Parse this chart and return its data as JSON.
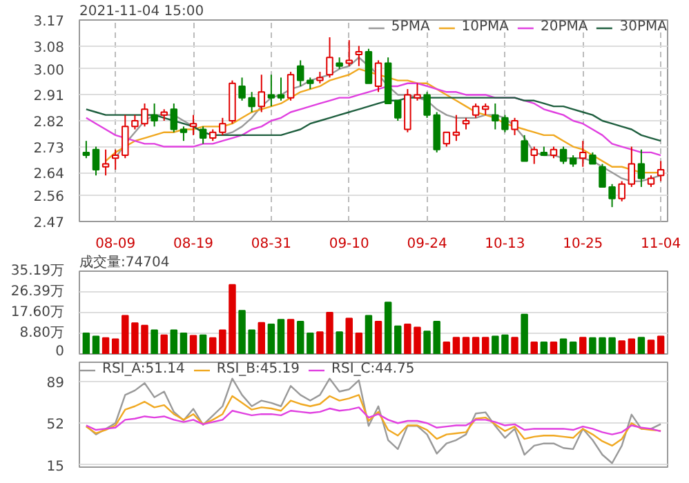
{
  "chart_data": [
    {
      "type": "candlestick",
      "title": "2021-11-04 15:00",
      "categories": [
        null,
        null,
        null,
        "08-09",
        null,
        null,
        null,
        null,
        null,
        null,
        null,
        "08-19",
        null,
        null,
        null,
        null,
        null,
        null,
        null,
        "08-31",
        null,
        null,
        null,
        null,
        null,
        null,
        null,
        "09-10",
        null,
        null,
        null,
        null,
        null,
        null,
        null,
        "09-24",
        null,
        null,
        null,
        null,
        null,
        null,
        null,
        "10-13",
        null,
        null,
        null,
        null,
        null,
        null,
        null,
        "10-25",
        null,
        null,
        null,
        null,
        null,
        null,
        null,
        "11-04"
      ],
      "ohlc": [
        [
          2.71,
          2.75,
          2.69,
          2.7
        ],
        [
          2.72,
          2.73,
          2.63,
          2.65
        ],
        [
          2.66,
          2.72,
          2.63,
          2.67
        ],
        [
          2.69,
          2.72,
          2.65,
          2.7
        ],
        [
          2.7,
          2.84,
          2.69,
          2.8
        ],
        [
          2.8,
          2.84,
          2.79,
          2.82
        ],
        [
          2.81,
          2.88,
          2.8,
          2.86
        ],
        [
          2.84,
          2.88,
          2.8,
          2.82
        ],
        [
          2.84,
          2.86,
          2.82,
          2.85
        ],
        [
          2.86,
          2.88,
          2.78,
          2.79
        ],
        [
          2.79,
          2.8,
          2.75,
          2.78
        ],
        [
          2.8,
          2.84,
          2.77,
          2.81
        ],
        [
          2.79,
          2.8,
          2.74,
          2.76
        ],
        [
          2.76,
          2.79,
          2.75,
          2.78
        ],
        [
          2.78,
          2.83,
          2.77,
          2.81
        ],
        [
          2.82,
          2.96,
          2.81,
          2.95
        ],
        [
          2.94,
          2.97,
          2.89,
          2.9
        ],
        [
          2.9,
          2.92,
          2.85,
          2.87
        ],
        [
          2.87,
          2.98,
          2.85,
          2.92
        ],
        [
          2.91,
          2.98,
          2.87,
          2.9
        ],
        [
          2.91,
          2.97,
          2.89,
          2.9
        ],
        [
          2.9,
          2.99,
          2.89,
          2.98
        ],
        [
          3.01,
          3.03,
          2.94,
          2.96
        ],
        [
          2.96,
          2.97,
          2.93,
          2.95
        ],
        [
          2.96,
          2.99,
          2.95,
          2.97
        ],
        [
          2.98,
          3.11,
          2.97,
          3.04
        ],
        [
          3.02,
          3.04,
          3.0,
          3.01
        ],
        [
          3.02,
          3.1,
          3.01,
          3.03
        ],
        [
          3.05,
          3.08,
          3.01,
          3.06
        ],
        [
          3.06,
          3.07,
          2.95,
          2.95
        ],
        [
          2.94,
          3.03,
          2.92,
          3.02
        ],
        [
          3.02,
          3.04,
          2.88,
          2.88
        ],
        [
          2.89,
          2.89,
          2.82,
          2.83
        ],
        [
          2.79,
          2.93,
          2.78,
          2.91
        ],
        [
          2.9,
          2.95,
          2.89,
          2.91
        ],
        [
          2.91,
          2.92,
          2.83,
          2.84
        ],
        [
          2.84,
          2.85,
          2.71,
          2.72
        ],
        [
          2.74,
          2.78,
          2.73,
          2.78
        ],
        [
          2.77,
          2.84,
          2.75,
          2.78
        ],
        [
          2.81,
          2.83,
          2.79,
          2.82
        ],
        [
          2.84,
          2.88,
          2.83,
          2.87
        ],
        [
          2.86,
          2.88,
          2.84,
          2.87
        ],
        [
          2.84,
          2.88,
          2.79,
          2.82
        ],
        [
          2.83,
          2.84,
          2.78,
          2.79
        ],
        [
          2.79,
          2.83,
          2.77,
          2.82
        ],
        [
          2.75,
          2.77,
          2.68,
          2.68
        ],
        [
          2.7,
          2.73,
          2.67,
          2.72
        ],
        [
          2.71,
          2.73,
          2.7,
          2.7
        ],
        [
          2.7,
          2.73,
          2.69,
          2.72
        ],
        [
          2.72,
          2.73,
          2.67,
          2.68
        ],
        [
          2.69,
          2.7,
          2.66,
          2.67
        ],
        [
          2.69,
          2.75,
          2.66,
          2.71
        ],
        [
          2.7,
          2.71,
          2.67,
          2.67
        ],
        [
          2.66,
          2.67,
          2.59,
          2.59
        ],
        [
          2.59,
          2.6,
          2.52,
          2.55
        ],
        [
          2.55,
          2.61,
          2.54,
          2.6
        ],
        [
          2.6,
          2.73,
          2.59,
          2.67
        ],
        [
          2.67,
          2.72,
          2.59,
          2.62
        ],
        [
          2.6,
          2.63,
          2.59,
          2.62
        ],
        [
          2.63,
          2.68,
          2.61,
          2.65
        ]
      ],
      "colors": [
        "#008000",
        "#008000",
        "#e00000",
        "#e00000",
        "#e00000",
        "#e00000",
        "#e00000",
        "#008000",
        "#e00000",
        "#008000",
        "#008000",
        "#e00000",
        "#008000",
        "#e00000",
        "#e00000",
        "#e00000",
        "#008000",
        "#008000",
        "#e00000",
        "#008000",
        "#008000",
        "#e00000",
        "#008000",
        "#008000",
        "#e00000",
        "#e00000",
        "#008000",
        "#e00000",
        "#e00000",
        "#008000",
        "#e00000",
        "#008000",
        "#008000",
        "#e00000",
        "#e00000",
        "#008000",
        "#008000",
        "#e00000",
        "#e00000",
        "#e00000",
        "#e00000",
        "#e00000",
        "#008000",
        "#008000",
        "#e00000",
        "#008000",
        "#e00000",
        "#008000",
        "#e00000",
        "#008000",
        "#008000",
        "#e00000",
        "#008000",
        "#008000",
        "#008000",
        "#e00000",
        "#e00000",
        "#008000",
        "#e00000",
        "#e00000"
      ],
      "series": [
        {
          "name": "5PMA",
          "type": "line",
          "color": "#999999",
          "values": [
            null,
            null,
            null,
            2.69,
            2.74,
            2.78,
            2.82,
            2.84,
            2.84,
            2.84,
            2.82,
            2.8,
            2.78,
            2.77,
            2.77,
            2.78,
            2.8,
            2.83,
            2.87,
            2.9,
            2.91,
            2.93,
            2.94,
            2.96,
            2.97,
            2.98,
            3.0,
            3.01,
            3.04,
            3.01,
            2.98,
            2.94,
            2.91,
            2.91,
            2.9,
            2.89,
            2.86,
            2.84,
            2.83,
            2.83,
            2.83,
            2.84,
            2.84,
            2.83,
            2.8,
            2.76,
            2.71,
            2.7,
            2.7,
            2.69,
            2.69,
            2.69,
            2.68,
            2.66,
            2.64,
            2.62,
            2.61,
            2.61,
            2.62,
            2.63
          ]
        },
        {
          "name": "10PMA",
          "type": "line",
          "color": "#f0a820",
          "values": [
            null,
            null,
            2.68,
            2.71,
            2.73,
            2.75,
            2.76,
            2.77,
            2.78,
            2.78,
            2.79,
            2.79,
            2.8,
            2.8,
            2.8,
            2.81,
            2.83,
            2.85,
            2.86,
            2.87,
            2.88,
            2.9,
            2.92,
            2.93,
            2.94,
            2.96,
            2.97,
            2.98,
            3.0,
            2.99,
            2.98,
            2.97,
            2.96,
            2.96,
            2.95,
            2.95,
            2.93,
            2.91,
            2.89,
            2.87,
            2.85,
            2.84,
            2.83,
            2.81,
            2.8,
            2.79,
            2.78,
            2.77,
            2.77,
            2.75,
            2.73,
            2.72,
            2.7,
            2.68,
            2.66,
            2.66,
            2.65,
            2.64,
            2.64,
            2.64
          ]
        },
        {
          "name": "20PMA",
          "type": "line",
          "color": "#e040e0",
          "values": [
            2.83,
            2.81,
            2.79,
            2.77,
            2.76,
            2.75,
            2.74,
            2.74,
            2.73,
            2.73,
            2.73,
            2.73,
            2.74,
            2.74,
            2.75,
            2.76,
            2.77,
            2.79,
            2.8,
            2.82,
            2.83,
            2.85,
            2.86,
            2.87,
            2.88,
            2.89,
            2.9,
            2.9,
            2.91,
            2.92,
            2.93,
            2.94,
            2.94,
            2.95,
            2.95,
            2.94,
            2.93,
            2.92,
            2.92,
            2.91,
            2.91,
            2.91,
            2.9,
            2.9,
            2.9,
            2.89,
            2.88,
            2.86,
            2.85,
            2.84,
            2.82,
            2.81,
            2.79,
            2.77,
            2.74,
            2.73,
            2.72,
            2.71,
            2.71,
            2.7
          ]
        },
        {
          "name": "30PMA",
          "type": "line",
          "color": "#1f5f3f",
          "values": [
            2.86,
            2.85,
            2.84,
            2.84,
            2.84,
            2.84,
            2.84,
            2.84,
            2.83,
            2.82,
            2.81,
            2.8,
            2.78,
            2.77,
            2.77,
            2.77,
            2.77,
            2.77,
            2.77,
            2.77,
            2.77,
            2.78,
            2.79,
            2.81,
            2.82,
            2.83,
            2.84,
            2.85,
            2.86,
            2.87,
            2.88,
            2.89,
            2.89,
            2.9,
            2.9,
            2.9,
            2.9,
            2.9,
            2.9,
            2.9,
            2.9,
            2.9,
            2.9,
            2.9,
            2.9,
            2.89,
            2.89,
            2.88,
            2.87,
            2.87,
            2.86,
            2.85,
            2.84,
            2.82,
            2.81,
            2.8,
            2.79,
            2.77,
            2.76,
            2.75
          ]
        }
      ],
      "ylim": [
        2.47,
        3.17
      ],
      "yticks": [
        2.47,
        2.56,
        2.64,
        2.73,
        2.82,
        2.91,
        {
          "value": 3.0,
          "label": "3.00"
        },
        3.08,
        3.17
      ],
      "grid": true,
      "legend": "top right"
    },
    {
      "type": "bar",
      "title": "成交量:74704",
      "categories": [
        null,
        null,
        null,
        null,
        null,
        null,
        null,
        null,
        null,
        null,
        null,
        null,
        null,
        null,
        null,
        null,
        null,
        null,
        null,
        null,
        null,
        null,
        null,
        null,
        null,
        null,
        null,
        null,
        null,
        null,
        null,
        null,
        null,
        null,
        null,
        null,
        null,
        null,
        null,
        null,
        null,
        null,
        null,
        null,
        null,
        null,
        null,
        null,
        null,
        null,
        null,
        null,
        null,
        null,
        null,
        null,
        null,
        null,
        null,
        null
      ],
      "values": [
        8.8,
        7.5,
        6.8,
        6.3,
        16.3,
        13.1,
        12.1,
        10.1,
        8.0,
        10.1,
        8.8,
        7.8,
        8.0,
        6.8,
        10.1,
        29.4,
        18.4,
        10.1,
        13.3,
        12.6,
        14.6,
        14.6,
        13.8,
        8.8,
        9.3,
        17.6,
        9.3,
        15.1,
        8.8,
        16.3,
        13.8,
        21.9,
        11.8,
        12.6,
        11.3,
        9.6,
        13.8,
        5.0,
        7.0,
        7.0,
        7.0,
        7.0,
        7.5,
        8.0,
        7.0,
        16.8,
        5.0,
        5.0,
        5.0,
        6.3,
        5.0,
        7.0,
        6.8,
        6.8,
        6.8,
        5.5,
        6.3,
        7.0,
        5.8,
        7.5
      ],
      "colors": [
        "#008000",
        "#008000",
        "#e00000",
        "#e00000",
        "#e00000",
        "#e00000",
        "#e00000",
        "#008000",
        "#e00000",
        "#008000",
        "#008000",
        "#e00000",
        "#008000",
        "#e00000",
        "#e00000",
        "#e00000",
        "#008000",
        "#008000",
        "#e00000",
        "#008000",
        "#008000",
        "#e00000",
        "#008000",
        "#008000",
        "#e00000",
        "#e00000",
        "#008000",
        "#e00000",
        "#e00000",
        "#008000",
        "#e00000",
        "#008000",
        "#008000",
        "#e00000",
        "#e00000",
        "#008000",
        "#008000",
        "#e00000",
        "#e00000",
        "#e00000",
        "#e00000",
        "#e00000",
        "#008000",
        "#008000",
        "#e00000",
        "#008000",
        "#e00000",
        "#008000",
        "#e00000",
        "#008000",
        "#008000",
        "#e00000",
        "#008000",
        "#008000",
        "#008000",
        "#e00000",
        "#e00000",
        "#008000",
        "#e00000",
        "#e00000"
      ],
      "ylim": [
        0,
        35.19
      ],
      "yticks": [
        0,
        {
          "value": 8.8,
          "label": "8.80万"
        },
        {
          "value": 17.6,
          "label": "17.60万"
        },
        {
          "value": 26.39,
          "label": "26.39万"
        },
        {
          "value": 35.19,
          "label": "35.19万"
        }
      ],
      "grid": "y",
      "tick_labels": "y"
    },
    {
      "type": "line",
      "categories": [
        null,
        null,
        null,
        null,
        null,
        null,
        null,
        null,
        null,
        null,
        null,
        null,
        null,
        null,
        null,
        null,
        null,
        null,
        null,
        null,
        null,
        null,
        null,
        null,
        null,
        null,
        null,
        null,
        null,
        null,
        null,
        null,
        null,
        null,
        null,
        null,
        null,
        null,
        null,
        null,
        null,
        null,
        null,
        null,
        null,
        null,
        null,
        null,
        null,
        null,
        null,
        null,
        null,
        null,
        null,
        null,
        null,
        null,
        null,
        null
      ],
      "series": [
        {
          "name": "RSI_A:51.14",
          "color": "#999999",
          "values": [
            49.5,
            42,
            47,
            52,
            77,
            81,
            87.5,
            75,
            80,
            62,
            54.5,
            64.7,
            50.5,
            58.6,
            67,
            91.5,
            77,
            67,
            72,
            70,
            67,
            85,
            77,
            72,
            77,
            91.5,
            80,
            82,
            90,
            49.5,
            67,
            37,
            29,
            49.5,
            49.5,
            42,
            25,
            34,
            37,
            42,
            60.6,
            61.6,
            49.5,
            39,
            47,
            24,
            32,
            34,
            34,
            30,
            29,
            47,
            37,
            24,
            16.5,
            32,
            59.6,
            47,
            47,
            51.14
          ]
        },
        {
          "name": "RSI_B:45.19",
          "color": "#f0a820",
          "values": [
            49,
            43,
            46,
            50,
            64,
            67,
            71,
            66,
            68,
            60,
            55,
            60,
            51,
            55,
            60,
            76,
            70,
            64,
            66,
            65,
            63,
            72,
            69,
            67,
            69,
            76,
            72,
            74,
            77,
            54,
            62,
            46,
            41,
            50,
            50,
            46,
            38,
            42,
            43,
            44,
            56,
            57,
            51,
            45,
            49,
            38,
            40,
            41,
            41,
            40,
            39,
            47,
            42,
            36,
            32,
            38,
            52,
            47,
            46,
            45.19
          ]
        },
        {
          "name": "RSI_C:44.75",
          "color": "#e040e0",
          "values": [
            50,
            46,
            47,
            48,
            55,
            56,
            58,
            57,
            58,
            55,
            53,
            55,
            51,
            53,
            55,
            63,
            61,
            59,
            60,
            60,
            59,
            63,
            62,
            61,
            62,
            65,
            63,
            64,
            66,
            57,
            60,
            55,
            52,
            54,
            54,
            52,
            48,
            49,
            50,
            50,
            55,
            55,
            53,
            50,
            51,
            46,
            47,
            47,
            47,
            47,
            46,
            49,
            47,
            44,
            42,
            44,
            50,
            48,
            47,
            44.75
          ]
        }
      ],
      "ylim": [
        13,
        106
      ],
      "yticks": [
        15,
        52,
        89
      ],
      "grid": "y",
      "legend": "top left",
      "tick_labels": "y"
    }
  ]
}
